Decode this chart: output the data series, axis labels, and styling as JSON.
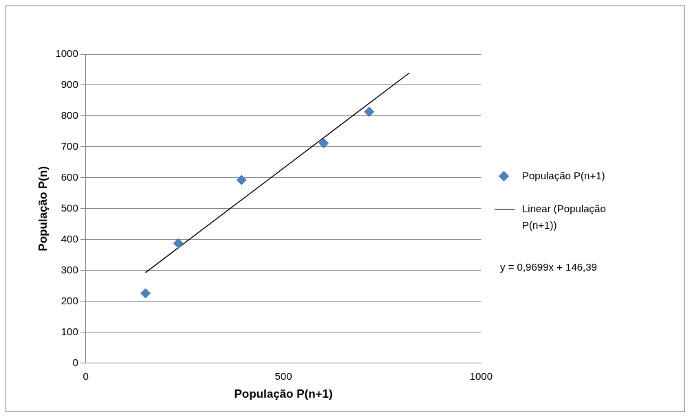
{
  "chart_data": {
    "type": "scatter",
    "xlabel": "População P(n+1)",
    "ylabel": "População P(n)",
    "series": [
      {
        "name": "População P(n+1)",
        "color": "#4f81bd",
        "marker": "diamond",
        "x": [
          151,
          234,
          394,
          602,
          717
        ],
        "values": [
          226,
          388,
          593,
          712,
          814
        ]
      },
      {
        "name": "Linear (População P(n+1))",
        "type": "line",
        "color": "#000000",
        "marker": "none",
        "x": [
          151,
          819
        ],
        "values": [
          293,
          940
        ]
      }
    ],
    "xlim": [
      0,
      1000
    ],
    "xticks": [
      0,
      500,
      1000
    ],
    "ylim": [
      0,
      1000
    ],
    "yticks": [
      0,
      100,
      200,
      300,
      400,
      500,
      600,
      700,
      800,
      900,
      1000
    ],
    "grid": "y",
    "legend": "right",
    "annotations": [
      "y = 0,9699x + 146,39"
    ]
  }
}
